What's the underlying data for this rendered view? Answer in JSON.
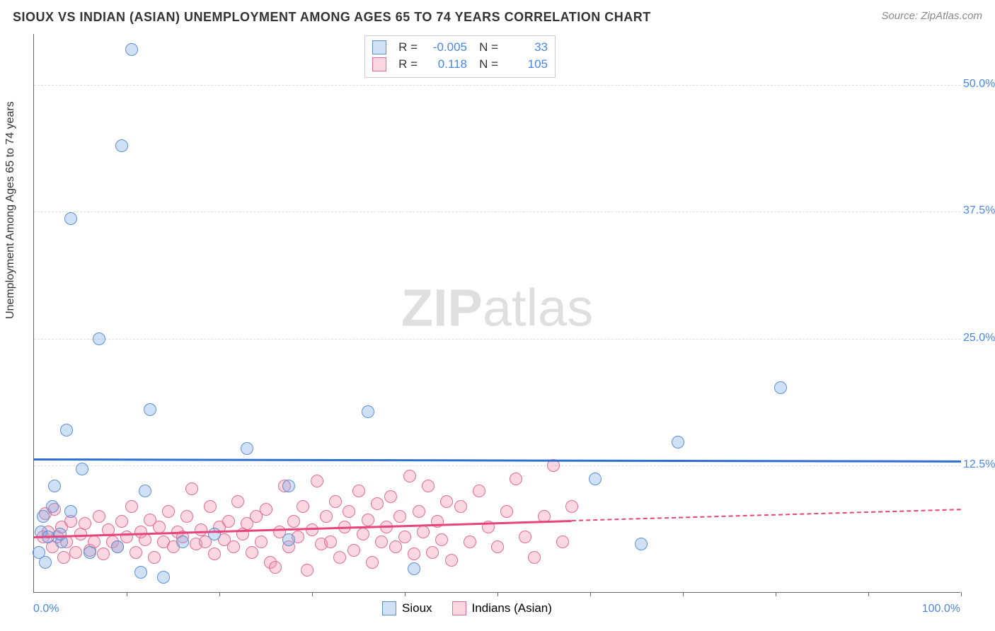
{
  "title": "SIOUX VS INDIAN (ASIAN) UNEMPLOYMENT AMONG AGES 65 TO 74 YEARS CORRELATION CHART",
  "title_color": "#333333",
  "source_label": "Source: ZipAtlas.com",
  "watermark_zip": "ZIP",
  "watermark_atlas": "atlas",
  "ylabel": "Unemployment Among Ages 65 to 74 years",
  "xlim": [
    0,
    100
  ],
  "ylim": [
    0,
    55
  ],
  "yticks": [
    {
      "v": 12.5,
      "label": "12.5%"
    },
    {
      "v": 25.0,
      "label": "25.0%"
    },
    {
      "v": 37.5,
      "label": "37.5%"
    },
    {
      "v": 50.0,
      "label": "50.0%"
    }
  ],
  "xtick_marks": [
    10,
    20,
    30,
    40,
    50,
    60,
    70,
    80,
    90,
    100
  ],
  "x_label_min": "0.0%",
  "x_label_max": "100.0%",
  "axis_label_color": "#4a86e8",
  "tick_label_color": "#4a86e8",
  "grid_color": "#dddddd",
  "background_color": "#ffffff",
  "marker_radius": 9,
  "marker_border_width": 1.3,
  "series": [
    {
      "name": "Sioux",
      "fill": "rgba(120,170,230,0.35)",
      "stroke": "#5b8fd6",
      "stat_R": "-0.005",
      "stat_N": "33",
      "reg_color": "#2e6fd0",
      "regression": {
        "x1": 0,
        "y1": 13.2,
        "x2": 100,
        "y2": 13.0
      },
      "points": [
        [
          10.5,
          53.5
        ],
        [
          9.5,
          44.0
        ],
        [
          4.0,
          36.8
        ],
        [
          7.0,
          25.0
        ],
        [
          3.5,
          16.0
        ],
        [
          12.5,
          18.0
        ],
        [
          23.0,
          14.2
        ],
        [
          36.0,
          17.8
        ],
        [
          5.2,
          12.2
        ],
        [
          2.2,
          10.5
        ],
        [
          12.0,
          10.0
        ],
        [
          27.5,
          10.5
        ],
        [
          2.0,
          8.5
        ],
        [
          4.0,
          8.0
        ],
        [
          0.8,
          6.0
        ],
        [
          1.5,
          5.5
        ],
        [
          3.0,
          5.0
        ],
        [
          6.0,
          4.0
        ],
        [
          9.0,
          4.5
        ],
        [
          11.5,
          2.0
        ],
        [
          14.0,
          1.5
        ],
        [
          16.0,
          5.0
        ],
        [
          0.5,
          4.0
        ],
        [
          1.2,
          3.0
        ],
        [
          19.5,
          5.8
        ],
        [
          27.5,
          5.2
        ],
        [
          41.0,
          2.4
        ],
        [
          60.5,
          11.2
        ],
        [
          69.5,
          14.8
        ],
        [
          65.5,
          4.8
        ],
        [
          80.5,
          20.2
        ],
        [
          1.0,
          7.5
        ],
        [
          2.8,
          5.8
        ]
      ]
    },
    {
      "name": "Indians (Asian)",
      "fill": "rgba(240,140,170,0.35)",
      "stroke": "#e36b94",
      "stat_R": "0.118",
      "stat_N": "105",
      "reg_color": "#e6447a",
      "regression_solid": {
        "x1": 0,
        "y1": 5.6,
        "x2": 58,
        "y2": 7.2
      },
      "regression_dash": {
        "x1": 58,
        "y1": 7.2,
        "x2": 100,
        "y2": 8.3
      },
      "points": [
        [
          1.0,
          5.5
        ],
        [
          1.5,
          6.0
        ],
        [
          2.0,
          4.5
        ],
        [
          2.5,
          5.5
        ],
        [
          3.0,
          6.5
        ],
        [
          3.5,
          5.0
        ],
        [
          4.0,
          7.0
        ],
        [
          4.5,
          4.0
        ],
        [
          5.0,
          5.8
        ],
        [
          5.5,
          6.8
        ],
        [
          6.0,
          4.2
        ],
        [
          6.5,
          5.0
        ],
        [
          7.0,
          7.5
        ],
        [
          7.5,
          3.8
        ],
        [
          8.0,
          6.2
        ],
        [
          8.5,
          5.0
        ],
        [
          9.0,
          4.5
        ],
        [
          9.5,
          7.0
        ],
        [
          10.0,
          5.5
        ],
        [
          10.5,
          8.5
        ],
        [
          11.0,
          4.0
        ],
        [
          11.5,
          6.0
        ],
        [
          12.0,
          5.2
        ],
        [
          12.5,
          7.2
        ],
        [
          13.0,
          3.5
        ],
        [
          13.5,
          6.5
        ],
        [
          14.0,
          5.0
        ],
        [
          14.5,
          8.0
        ],
        [
          15.0,
          4.5
        ],
        [
          15.5,
          6.0
        ],
        [
          16.0,
          5.5
        ],
        [
          16.5,
          7.5
        ],
        [
          17.0,
          10.2
        ],
        [
          17.5,
          4.8
        ],
        [
          18.0,
          6.2
        ],
        [
          18.5,
          5.0
        ],
        [
          19.0,
          8.5
        ],
        [
          19.5,
          3.8
        ],
        [
          20.0,
          6.5
        ],
        [
          20.5,
          5.2
        ],
        [
          21.0,
          7.0
        ],
        [
          21.5,
          4.5
        ],
        [
          22.0,
          9.0
        ],
        [
          22.5,
          5.8
        ],
        [
          23.0,
          6.8
        ],
        [
          23.5,
          4.0
        ],
        [
          24.0,
          7.5
        ],
        [
          24.5,
          5.0
        ],
        [
          25.0,
          8.2
        ],
        [
          25.5,
          3.0
        ],
        [
          26.0,
          2.5
        ],
        [
          26.5,
          6.0
        ],
        [
          27.0,
          10.5
        ],
        [
          27.5,
          4.5
        ],
        [
          28.0,
          7.0
        ],
        [
          28.5,
          5.5
        ],
        [
          29.0,
          8.5
        ],
        [
          29.5,
          2.2
        ],
        [
          30.0,
          6.2
        ],
        [
          30.5,
          11.0
        ],
        [
          31.0,
          4.8
        ],
        [
          31.5,
          7.5
        ],
        [
          32.0,
          5.0
        ],
        [
          32.5,
          9.0
        ],
        [
          33.0,
          3.5
        ],
        [
          33.5,
          6.5
        ],
        [
          34.0,
          8.0
        ],
        [
          34.5,
          4.2
        ],
        [
          35.0,
          10.0
        ],
        [
          35.5,
          5.8
        ],
        [
          36.0,
          7.2
        ],
        [
          36.5,
          3.0
        ],
        [
          37.0,
          8.8
        ],
        [
          37.5,
          5.0
        ],
        [
          38.0,
          6.5
        ],
        [
          38.5,
          9.5
        ],
        [
          39.0,
          4.5
        ],
        [
          39.5,
          7.5
        ],
        [
          40.0,
          5.5
        ],
        [
          40.5,
          11.5
        ],
        [
          41.0,
          3.8
        ],
        [
          41.5,
          8.0
        ],
        [
          42.0,
          6.0
        ],
        [
          42.5,
          10.5
        ],
        [
          43.0,
          4.0
        ],
        [
          43.5,
          7.0
        ],
        [
          44.0,
          5.2
        ],
        [
          44.5,
          9.0
        ],
        [
          45.0,
          3.2
        ],
        [
          46.0,
          8.5
        ],
        [
          47.0,
          5.0
        ],
        [
          48.0,
          10.0
        ],
        [
          49.0,
          6.5
        ],
        [
          50.0,
          4.5
        ],
        [
          51.0,
          8.0
        ],
        [
          52.0,
          11.2
        ],
        [
          53.0,
          5.5
        ],
        [
          54.0,
          3.5
        ],
        [
          55.0,
          7.5
        ],
        [
          56.0,
          12.5
        ],
        [
          57.0,
          5.0
        ],
        [
          58.0,
          8.5
        ],
        [
          1.2,
          7.8
        ],
        [
          2.2,
          8.2
        ],
        [
          3.2,
          3.5
        ]
      ]
    }
  ]
}
